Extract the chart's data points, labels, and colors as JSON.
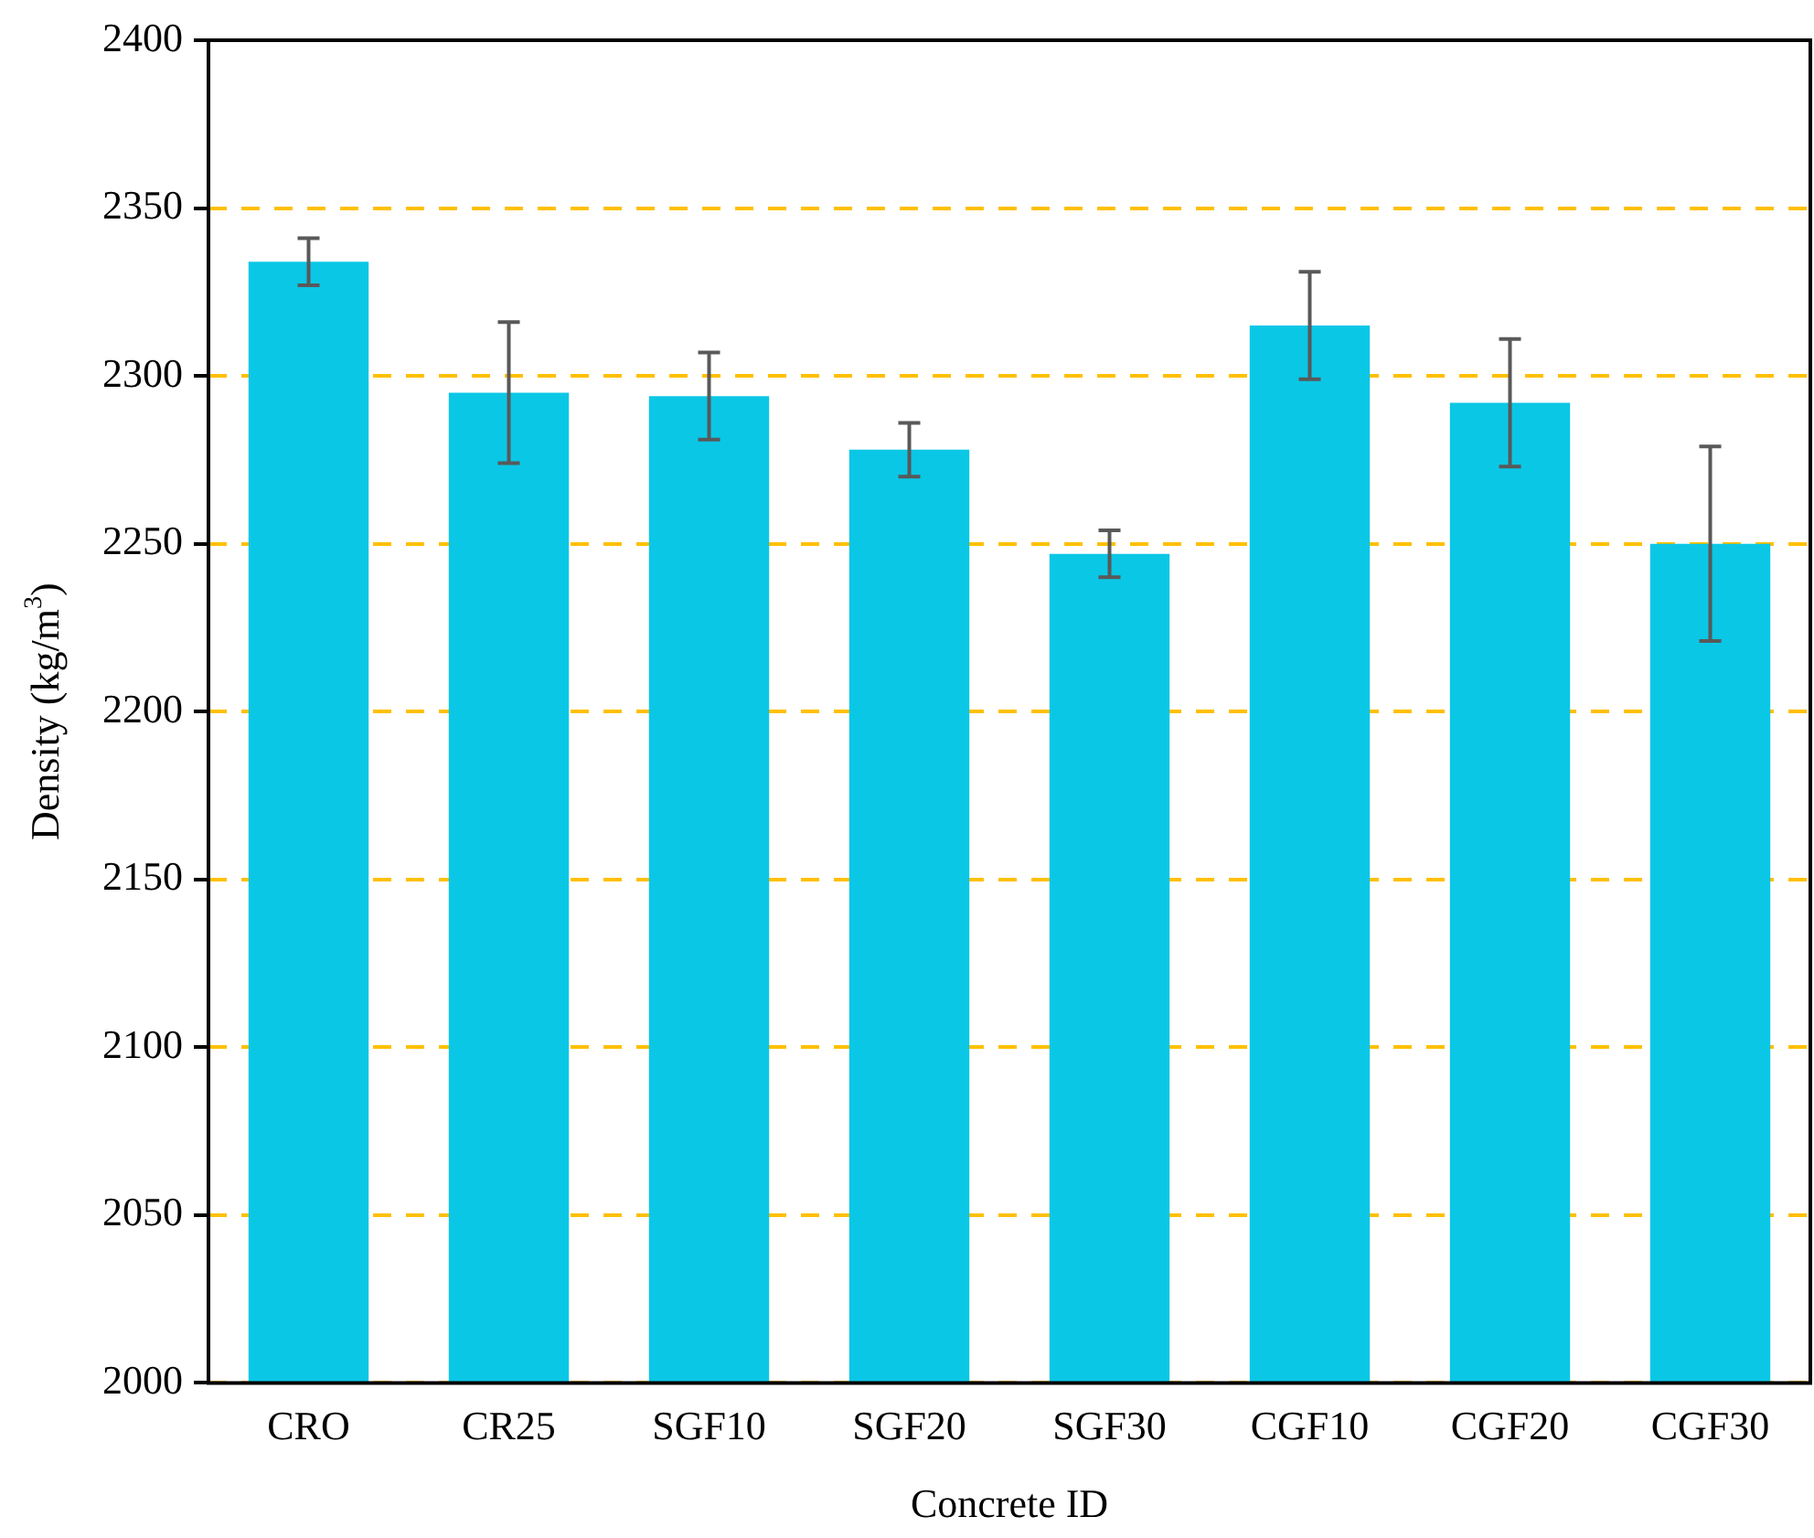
{
  "chart_data": {
    "type": "bar",
    "xlabel": "Concrete ID",
    "ylabel": "Density (kg/m$^{3}$)",
    "categories": [
      "CRO",
      "CR25",
      "SGF10",
      "SGF20",
      "SGF30",
      "CGF10",
      "CGF20",
      "CGF30"
    ],
    "values": [
      2334,
      2295,
      2294,
      2278,
      2247,
      2315,
      2292,
      2250
    ],
    "errors": [
      7,
      21,
      13,
      8,
      7,
      16,
      19,
      29
    ],
    "color": "#0bc7e6",
    "ylim": [
      2000,
      2400
    ],
    "yticks": [
      2000,
      2050,
      2100,
      2150,
      2200,
      2250,
      2300,
      2350,
      2400
    ],
    "grid": "y",
    "legend": false
  }
}
